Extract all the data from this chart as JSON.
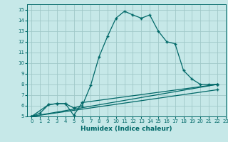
{
  "title": "",
  "xlabel": "Humidex (Indice chaleur)",
  "bg_color": "#c6e8e8",
  "grid_color": "#a0c8c8",
  "line_color": "#006868",
  "xlim": [
    -0.5,
    23
  ],
  "ylim": [
    5,
    15.5
  ],
  "xticks": [
    0,
    1,
    2,
    3,
    4,
    5,
    6,
    7,
    8,
    9,
    10,
    11,
    12,
    13,
    14,
    15,
    16,
    17,
    18,
    19,
    20,
    21,
    22,
    23
  ],
  "yticks": [
    5,
    6,
    7,
    8,
    9,
    10,
    11,
    12,
    13,
    14,
    15
  ],
  "curve1_x": [
    0,
    1,
    2,
    3,
    4,
    5,
    6,
    7,
    8,
    9,
    10,
    11,
    12,
    13,
    14,
    15,
    16,
    17,
    18,
    19,
    20,
    21,
    22
  ],
  "curve1_y": [
    5.0,
    5.3,
    6.1,
    6.2,
    6.2,
    5.8,
    6.0,
    7.9,
    10.6,
    12.5,
    14.2,
    14.85,
    14.5,
    14.2,
    14.5,
    13.0,
    12.0,
    11.8,
    9.3,
    8.5,
    8.0,
    8.0,
    8.0
  ],
  "curve2_x": [
    0,
    2,
    3,
    4,
    5,
    6,
    22
  ],
  "curve2_y": [
    5.0,
    6.1,
    6.2,
    6.2,
    5.1,
    6.3,
    8.0
  ],
  "curve3_x": [
    0,
    22
  ],
  "curve3_y": [
    5.0,
    7.5
  ],
  "curve4_x": [
    0,
    22
  ],
  "curve4_y": [
    5.0,
    8.0
  ]
}
